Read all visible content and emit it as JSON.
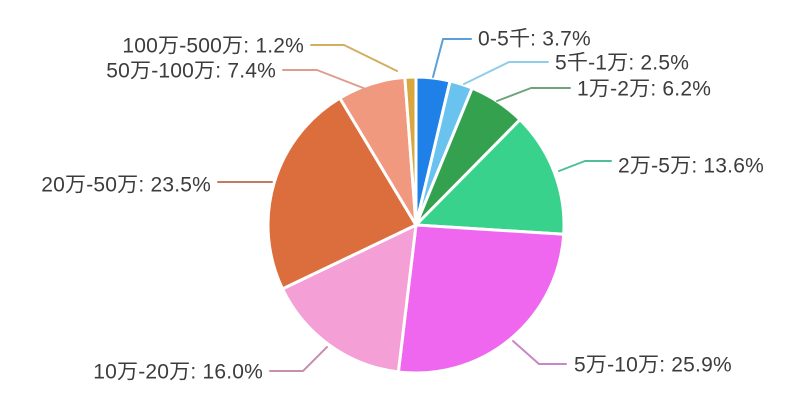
{
  "background_color": "#ffffff",
  "text_color": "#3c3c3c",
  "chart_data": {
    "type": "pie",
    "title": "",
    "legend_position": "none",
    "start_angle": "top",
    "direction": "clockwise",
    "value_unit": "%",
    "slices": [
      {
        "label": "0-5千",
        "value": 3.7,
        "display": "0-5千: 3.7%",
        "color": "#1F80E8",
        "leader_color": "#5C9FD6"
      },
      {
        "label": "5千-1万",
        "value": 2.5,
        "display": "5千-1万: 2.5%",
        "color": "#6AC3EE",
        "leader_color": "#8FCDE9"
      },
      {
        "label": "1万-2万",
        "value": 6.2,
        "display": "1万-2万: 6.2%",
        "color": "#34A14E",
        "leader_color": "#6FA47A"
      },
      {
        "label": "2万-5万",
        "value": 13.6,
        "display": "2万-5万: 13.6%",
        "color": "#38D28C",
        "leader_color": "#52BE95"
      },
      {
        "label": "5万-10万",
        "value": 25.9,
        "display": "5万-10万: 25.9%",
        "color": "#EE67EE",
        "leader_color": "#C886C8"
      },
      {
        "label": "10万-20万",
        "value": 16.0,
        "display": "10万-20万: 16.0%",
        "color": "#F49FD5",
        "leader_color": "#C98FB0"
      },
      {
        "label": "20万-50万",
        "value": 23.5,
        "display": "20万-50万: 23.5%",
        "color": "#DC6D3C",
        "leader_color": "#C47A62"
      },
      {
        "label": "50万-100万",
        "value": 7.4,
        "display": "50万-100万: 7.4%",
        "color": "#F0997E",
        "leader_color": "#DE9E8B"
      },
      {
        "label": "100万-500万",
        "value": 1.2,
        "display": "100万-500万: 1.2%",
        "color": "#D8A73F",
        "leader_color": "#D2AF62"
      }
    ]
  }
}
